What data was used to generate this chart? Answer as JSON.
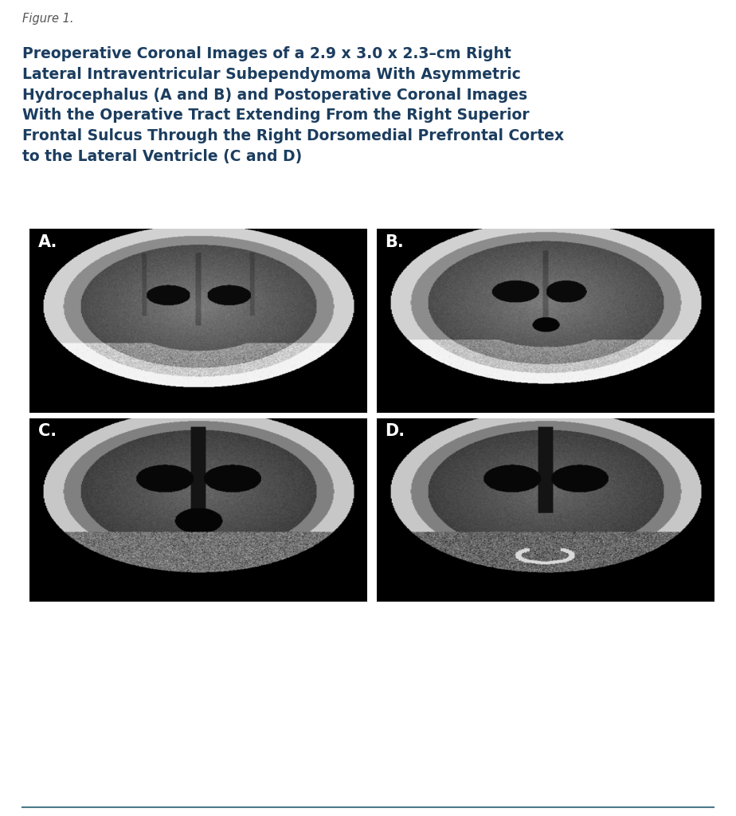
{
  "figure_label": "Figure 1.",
  "title_text": "Preoperative Coronal Images of a 2.9 x 3.0 x 2.3–cm Right\nLateral Intraventricular Subependymoma With Asymmetric\nHydrocephalus (A and B) and Postoperative Coronal Images\nWith the Operative Tract Extending From the Right Superior\nFrontal Sulcus Through the Right Dorsomedial Prefrontal Cortex\nto the Lateral Ventricle (C and D)",
  "panel_labels": [
    "A.",
    "B.",
    "C.",
    "D."
  ],
  "label_color": "#ffffff",
  "title_color": "#1b3d5f",
  "figure_label_color": "#555555",
  "bg_color": "#ffffff",
  "panel_bg": "#000000",
  "border_color": "#4a7a8a"
}
